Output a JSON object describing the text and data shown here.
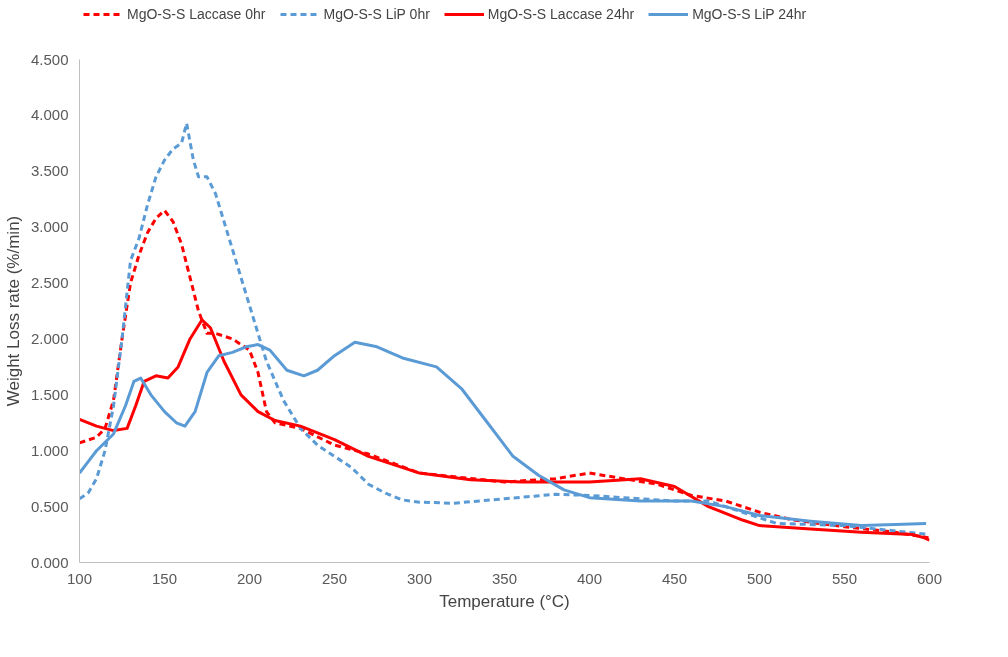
{
  "chart_data": {
    "type": "line",
    "xlabel": "Temperature (°C)",
    "ylabel": "Weight Loss rate (%/min)",
    "xlim": [
      100,
      600
    ],
    "xticks": [
      100,
      150,
      200,
      250,
      300,
      350,
      400,
      450,
      500,
      550,
      600
    ],
    "ylim": [
      0,
      4.5
    ],
    "yticks": [
      {
        "value": 0,
        "label": "0.000"
      },
      {
        "value": 0.5,
        "label": "0.500"
      },
      {
        "value": 1,
        "label": "1.000"
      },
      {
        "value": 1.5,
        "label": "1.500"
      },
      {
        "value": 2,
        "label": "2.000"
      },
      {
        "value": 2.5,
        "label": "2.500"
      },
      {
        "value": 3,
        "label": "3.000"
      },
      {
        "value": 3.5,
        "label": "3.500"
      },
      {
        "value": 4,
        "label": "4.000"
      },
      {
        "value": 4.5,
        "label": "4.500"
      }
    ],
    "grid": false,
    "legend": "top",
    "marker": "none",
    "series": [
      {
        "name": "MgO-S-S Laccase 0hr",
        "color": "#ff0000",
        "line_style": "dashed",
        "x": [
          100,
          110,
          115,
          120,
          125,
          130,
          135,
          140,
          145,
          150,
          155,
          160,
          165,
          170,
          175,
          180,
          190,
          200,
          205,
          210,
          215,
          230,
          250,
          270,
          300,
          350,
          380,
          400,
          420,
          440,
          460,
          480,
          500,
          520,
          550,
          580,
          600
        ],
        "values": [
          1.07,
          1.12,
          1.2,
          1.45,
          2.0,
          2.5,
          2.75,
          2.95,
          3.08,
          3.15,
          3.05,
          2.85,
          2.55,
          2.25,
          2.05,
          2.05,
          2.0,
          1.9,
          1.7,
          1.35,
          1.25,
          1.2,
          1.05,
          0.97,
          0.8,
          0.72,
          0.75,
          0.8,
          0.75,
          0.7,
          0.6,
          0.55,
          0.45,
          0.38,
          0.32,
          0.27,
          0.22
        ]
      },
      {
        "name": "MgO-S-S LiP 0hr",
        "color": "#5b9bd5",
        "line_style": "dashed",
        "x": [
          100,
          105,
          110,
          115,
          120,
          125,
          130,
          135,
          140,
          145,
          150,
          155,
          160,
          163,
          167,
          170,
          175,
          180,
          190,
          200,
          210,
          220,
          230,
          240,
          250,
          260,
          270,
          280,
          290,
          300,
          320,
          350,
          380,
          400,
          450,
          470,
          490,
          510,
          550,
          600
        ],
        "values": [
          0.57,
          0.62,
          0.75,
          1.0,
          1.4,
          2.0,
          2.7,
          2.9,
          3.2,
          3.45,
          3.6,
          3.7,
          3.75,
          3.93,
          3.6,
          3.45,
          3.45,
          3.3,
          2.8,
          2.3,
          1.8,
          1.45,
          1.2,
          1.05,
          0.95,
          0.85,
          0.7,
          0.62,
          0.56,
          0.54,
          0.53,
          0.57,
          0.61,
          0.6,
          0.55,
          0.55,
          0.45,
          0.35,
          0.33,
          0.25
        ]
      },
      {
        "name": "MgO-S-S Laccase 24hr",
        "color": "#ff0000",
        "line_style": "solid",
        "x": [
          100,
          110,
          120,
          128,
          133,
          138,
          145,
          152,
          158,
          165,
          172,
          177,
          185,
          195,
          205,
          215,
          230,
          250,
          270,
          300,
          330,
          360,
          380,
          400,
          430,
          450,
          470,
          490,
          500,
          530,
          560,
          590,
          597,
          600
        ],
        "values": [
          1.28,
          1.22,
          1.18,
          1.2,
          1.4,
          1.62,
          1.67,
          1.65,
          1.75,
          2.0,
          2.17,
          2.1,
          1.8,
          1.5,
          1.35,
          1.27,
          1.22,
          1.1,
          0.95,
          0.8,
          0.74,
          0.72,
          0.72,
          0.72,
          0.75,
          0.68,
          0.5,
          0.38,
          0.33,
          0.3,
          0.27,
          0.25,
          0.22,
          0.2
        ]
      },
      {
        "name": "MgO-S-S LiP 24hr",
        "color": "#5b9bd5",
        "line_style": "solid",
        "x": [
          100,
          105,
          110,
          120,
          127,
          132,
          136,
          142,
          150,
          157,
          162,
          168,
          175,
          182,
          190,
          198,
          205,
          212,
          222,
          232,
          240,
          250,
          262,
          275,
          290,
          310,
          325,
          340,
          355,
          370,
          385,
          400,
          430,
          460,
          480,
          500,
          530,
          560,
          580,
          598
        ],
        "values": [
          0.8,
          0.9,
          1.0,
          1.15,
          1.4,
          1.62,
          1.65,
          1.5,
          1.35,
          1.25,
          1.22,
          1.35,
          1.7,
          1.85,
          1.88,
          1.93,
          1.95,
          1.9,
          1.72,
          1.67,
          1.72,
          1.85,
          1.97,
          1.93,
          1.83,
          1.75,
          1.55,
          1.25,
          0.95,
          0.78,
          0.65,
          0.58,
          0.55,
          0.55,
          0.5,
          0.42,
          0.37,
          0.33,
          0.34,
          0.35
        ]
      }
    ]
  }
}
